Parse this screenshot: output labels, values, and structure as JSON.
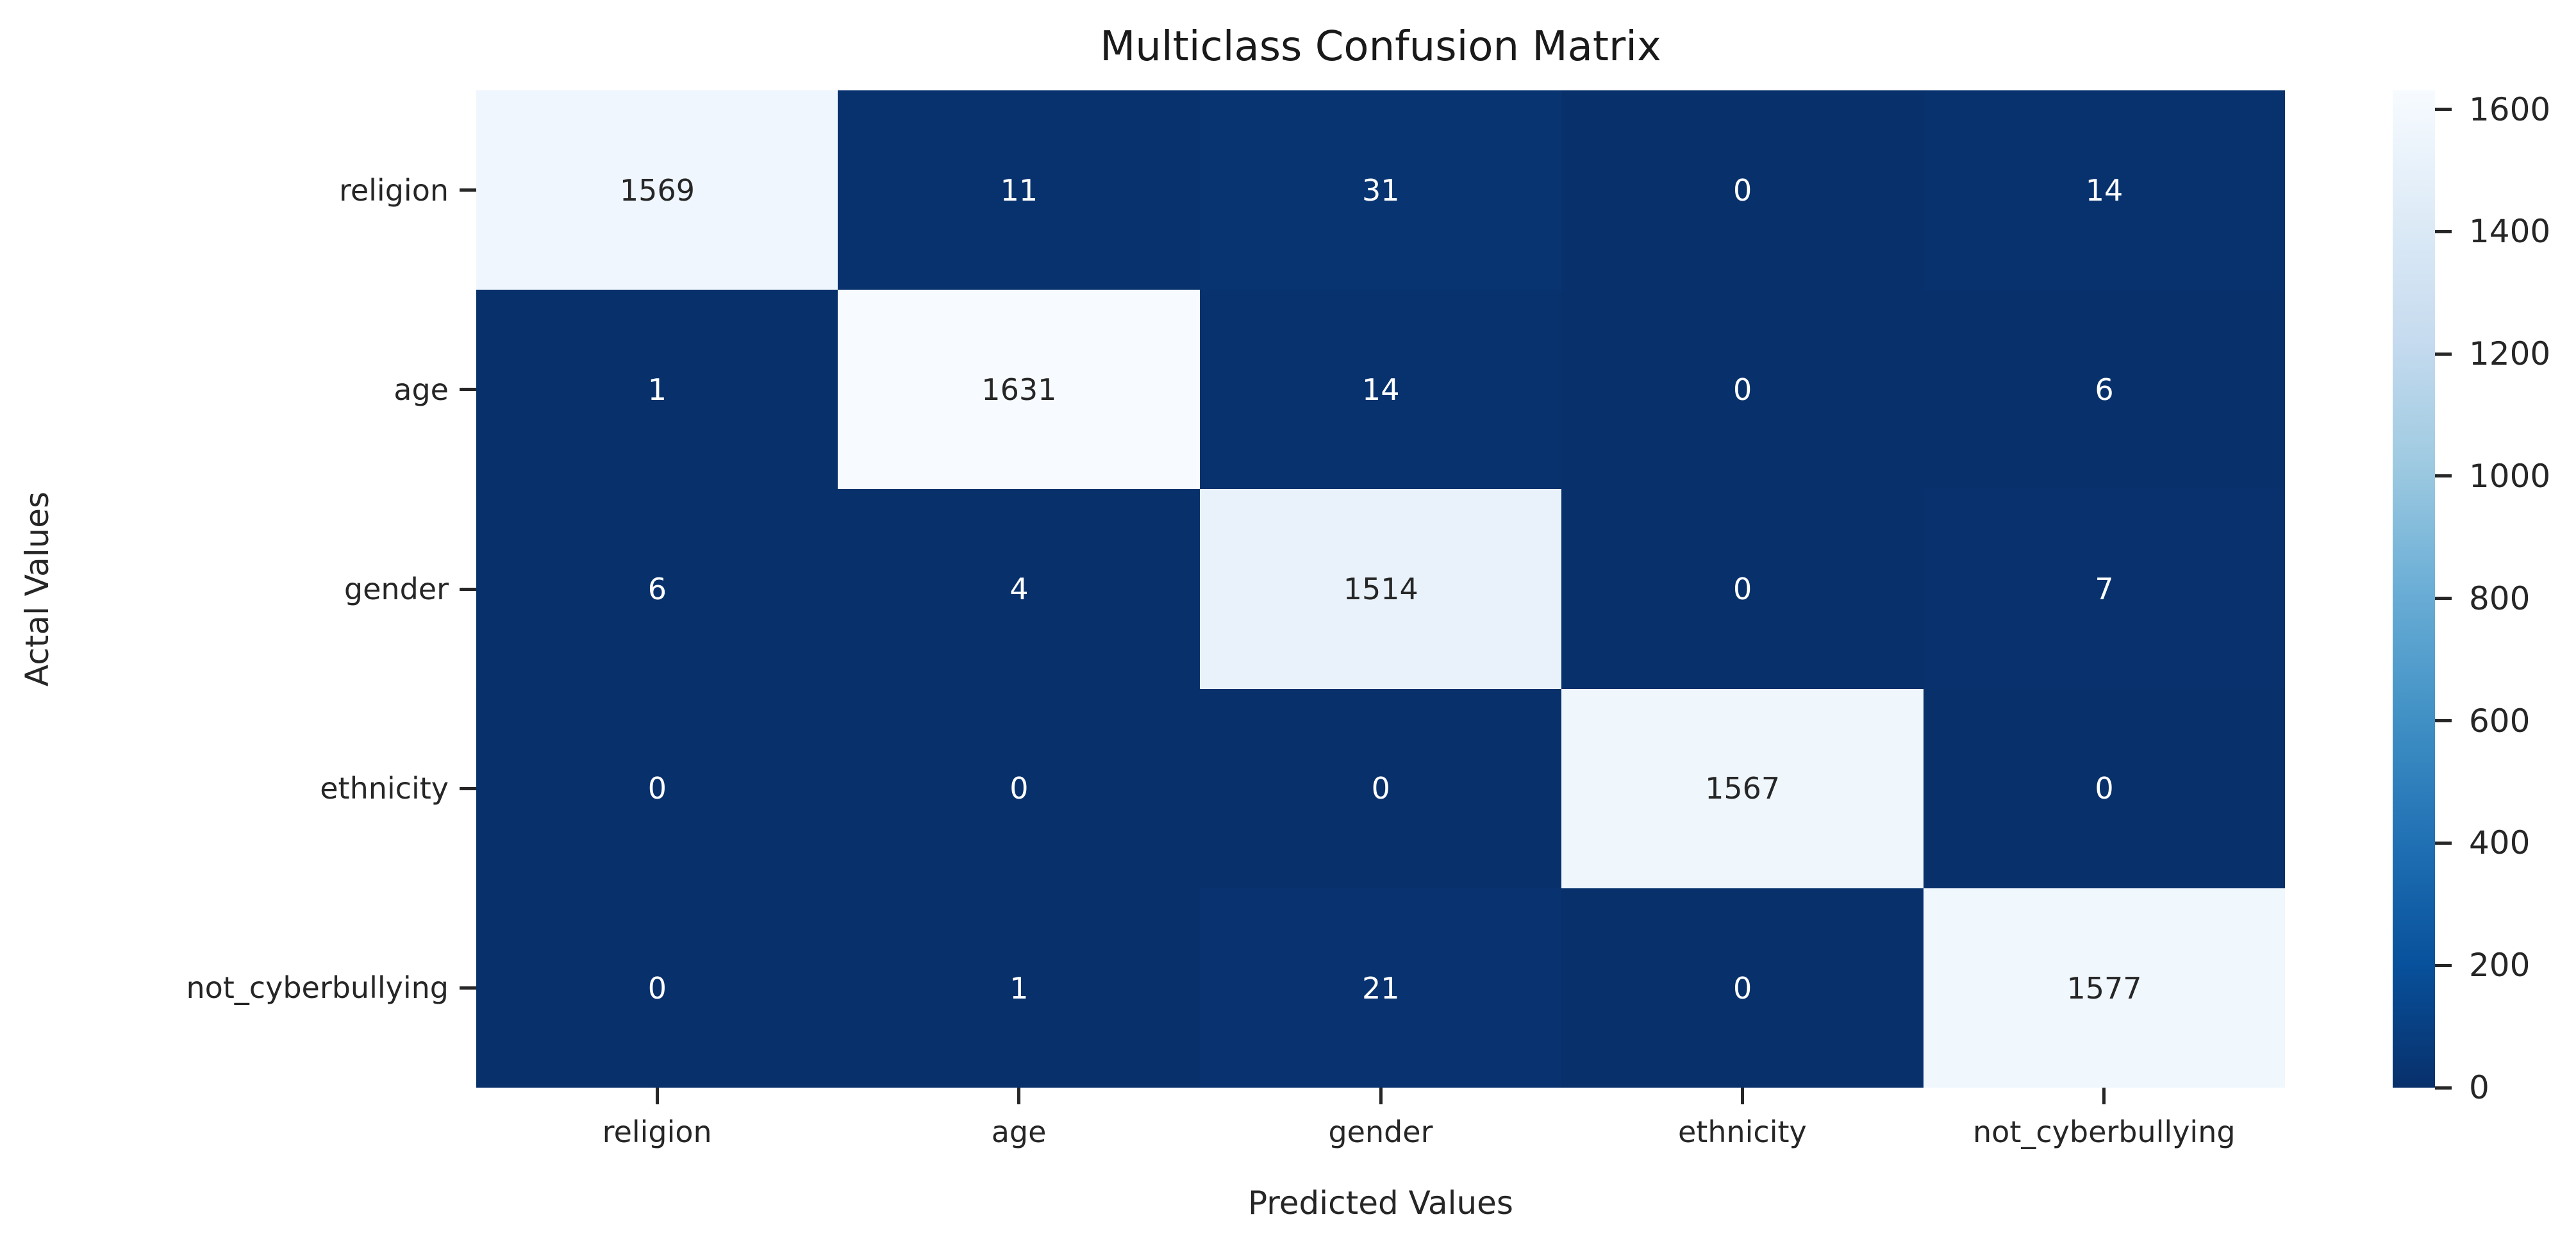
{
  "figure": {
    "title": "Multiclass Confusion Matrix",
    "xlabel": "Predicted Values",
    "ylabel": "Actal Values"
  },
  "chart_data": {
    "type": "heatmap",
    "title": "Multiclass Confusion Matrix",
    "xlabel": "Predicted Values",
    "ylabel": "Actal Values",
    "x_categories": [
      "religion",
      "age",
      "gender",
      "ethnicity",
      "not_cyberbullying"
    ],
    "y_categories": [
      "religion",
      "age",
      "gender",
      "ethnicity",
      "not_cyberbullying"
    ],
    "matrix": [
      [
        1569,
        11,
        31,
        0,
        14
      ],
      [
        1,
        1631,
        14,
        0,
        6
      ],
      [
        6,
        4,
        1514,
        0,
        7
      ],
      [
        0,
        0,
        0,
        1567,
        0
      ],
      [
        0,
        1,
        21,
        0,
        1577
      ]
    ],
    "vmin": 0,
    "vmax": 1631,
    "colormap": "Blues_r",
    "colormap_stops": [
      "#f7fbff",
      "#deebf7",
      "#c6dbef",
      "#9ecae1",
      "#6baed6",
      "#4292c6",
      "#2171b5",
      "#08519c",
      "#08306b"
    ],
    "colorbar_ticks": [
      0,
      200,
      400,
      600,
      800,
      1000,
      1200,
      1400,
      1600
    ],
    "colorbar_position": "right",
    "annotation_color_on_light": "#262626",
    "annotation_color_on_dark": "#ffffff",
    "color_low": "#08306b",
    "color_high": "#f7fbff"
  }
}
